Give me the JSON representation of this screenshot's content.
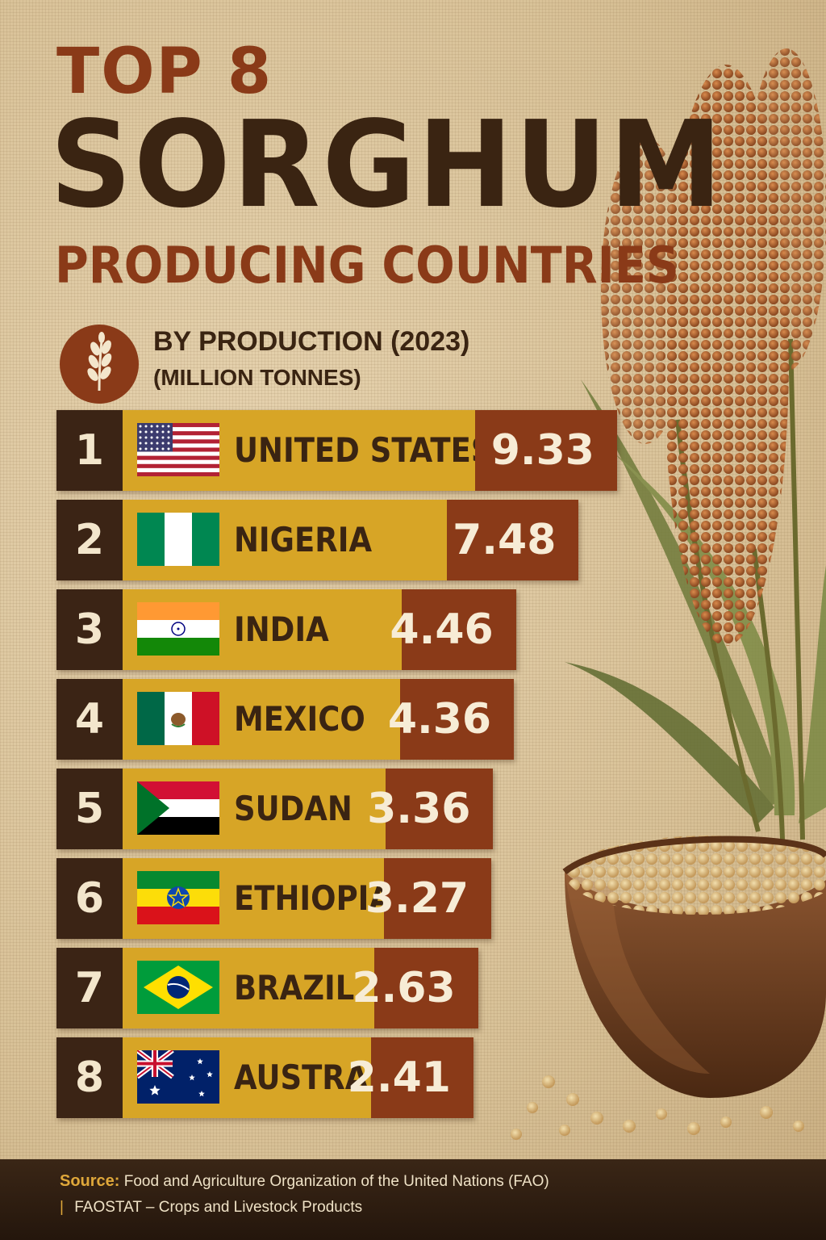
{
  "title": {
    "top": "TOP 8",
    "main": "SORGHUM",
    "sub": "PRODUCING COUNTRIES"
  },
  "subtitle": {
    "line1": "BY PRODUCTION (2023)",
    "line2": "(MILLION TONNES)",
    "icon": "grain-stalk-icon"
  },
  "chart_data": {
    "type": "bar",
    "orientation": "horizontal",
    "unit": "MILLION TONNES",
    "categories": [
      "UNITED STATES",
      "NIGERIA",
      "INDIA",
      "MEXICO",
      "SUDAN",
      "ETHIOPIA",
      "BRAZIL",
      "AUSTRALIA"
    ],
    "ranks": [
      "1",
      "2",
      "3",
      "4",
      "5",
      "6",
      "7",
      "8"
    ],
    "values": [
      9.33,
      7.48,
      4.46,
      4.36,
      3.36,
      3.27,
      2.63,
      2.41
    ],
    "value_labels": [
      "9.33",
      "7.48",
      "4.46",
      "4.36",
      "3.36",
      "3.27",
      "2.63",
      "2.41"
    ],
    "flags": [
      "flag-usa-icon",
      "flag-nigeria-icon",
      "flag-india-icon",
      "flag-mexico-icon",
      "flag-sudan-icon",
      "flag-ethiopia-icon",
      "flag-brazil-icon",
      "flag-australia-icon"
    ]
  },
  "colors": {
    "rank_bg": "#3b2415",
    "bar_bg": "#d7a526",
    "value_bg": "#8a3a18",
    "title_accent": "#8a3a18",
    "title_dark": "#3a2412"
  },
  "footer": {
    "source_label": "Source:",
    "source_line1": "Food and Agriculture Organization of the United Nations (FAO)",
    "separator": "|",
    "source_line2": "FAOSTAT – Crops and Livestock Products"
  }
}
